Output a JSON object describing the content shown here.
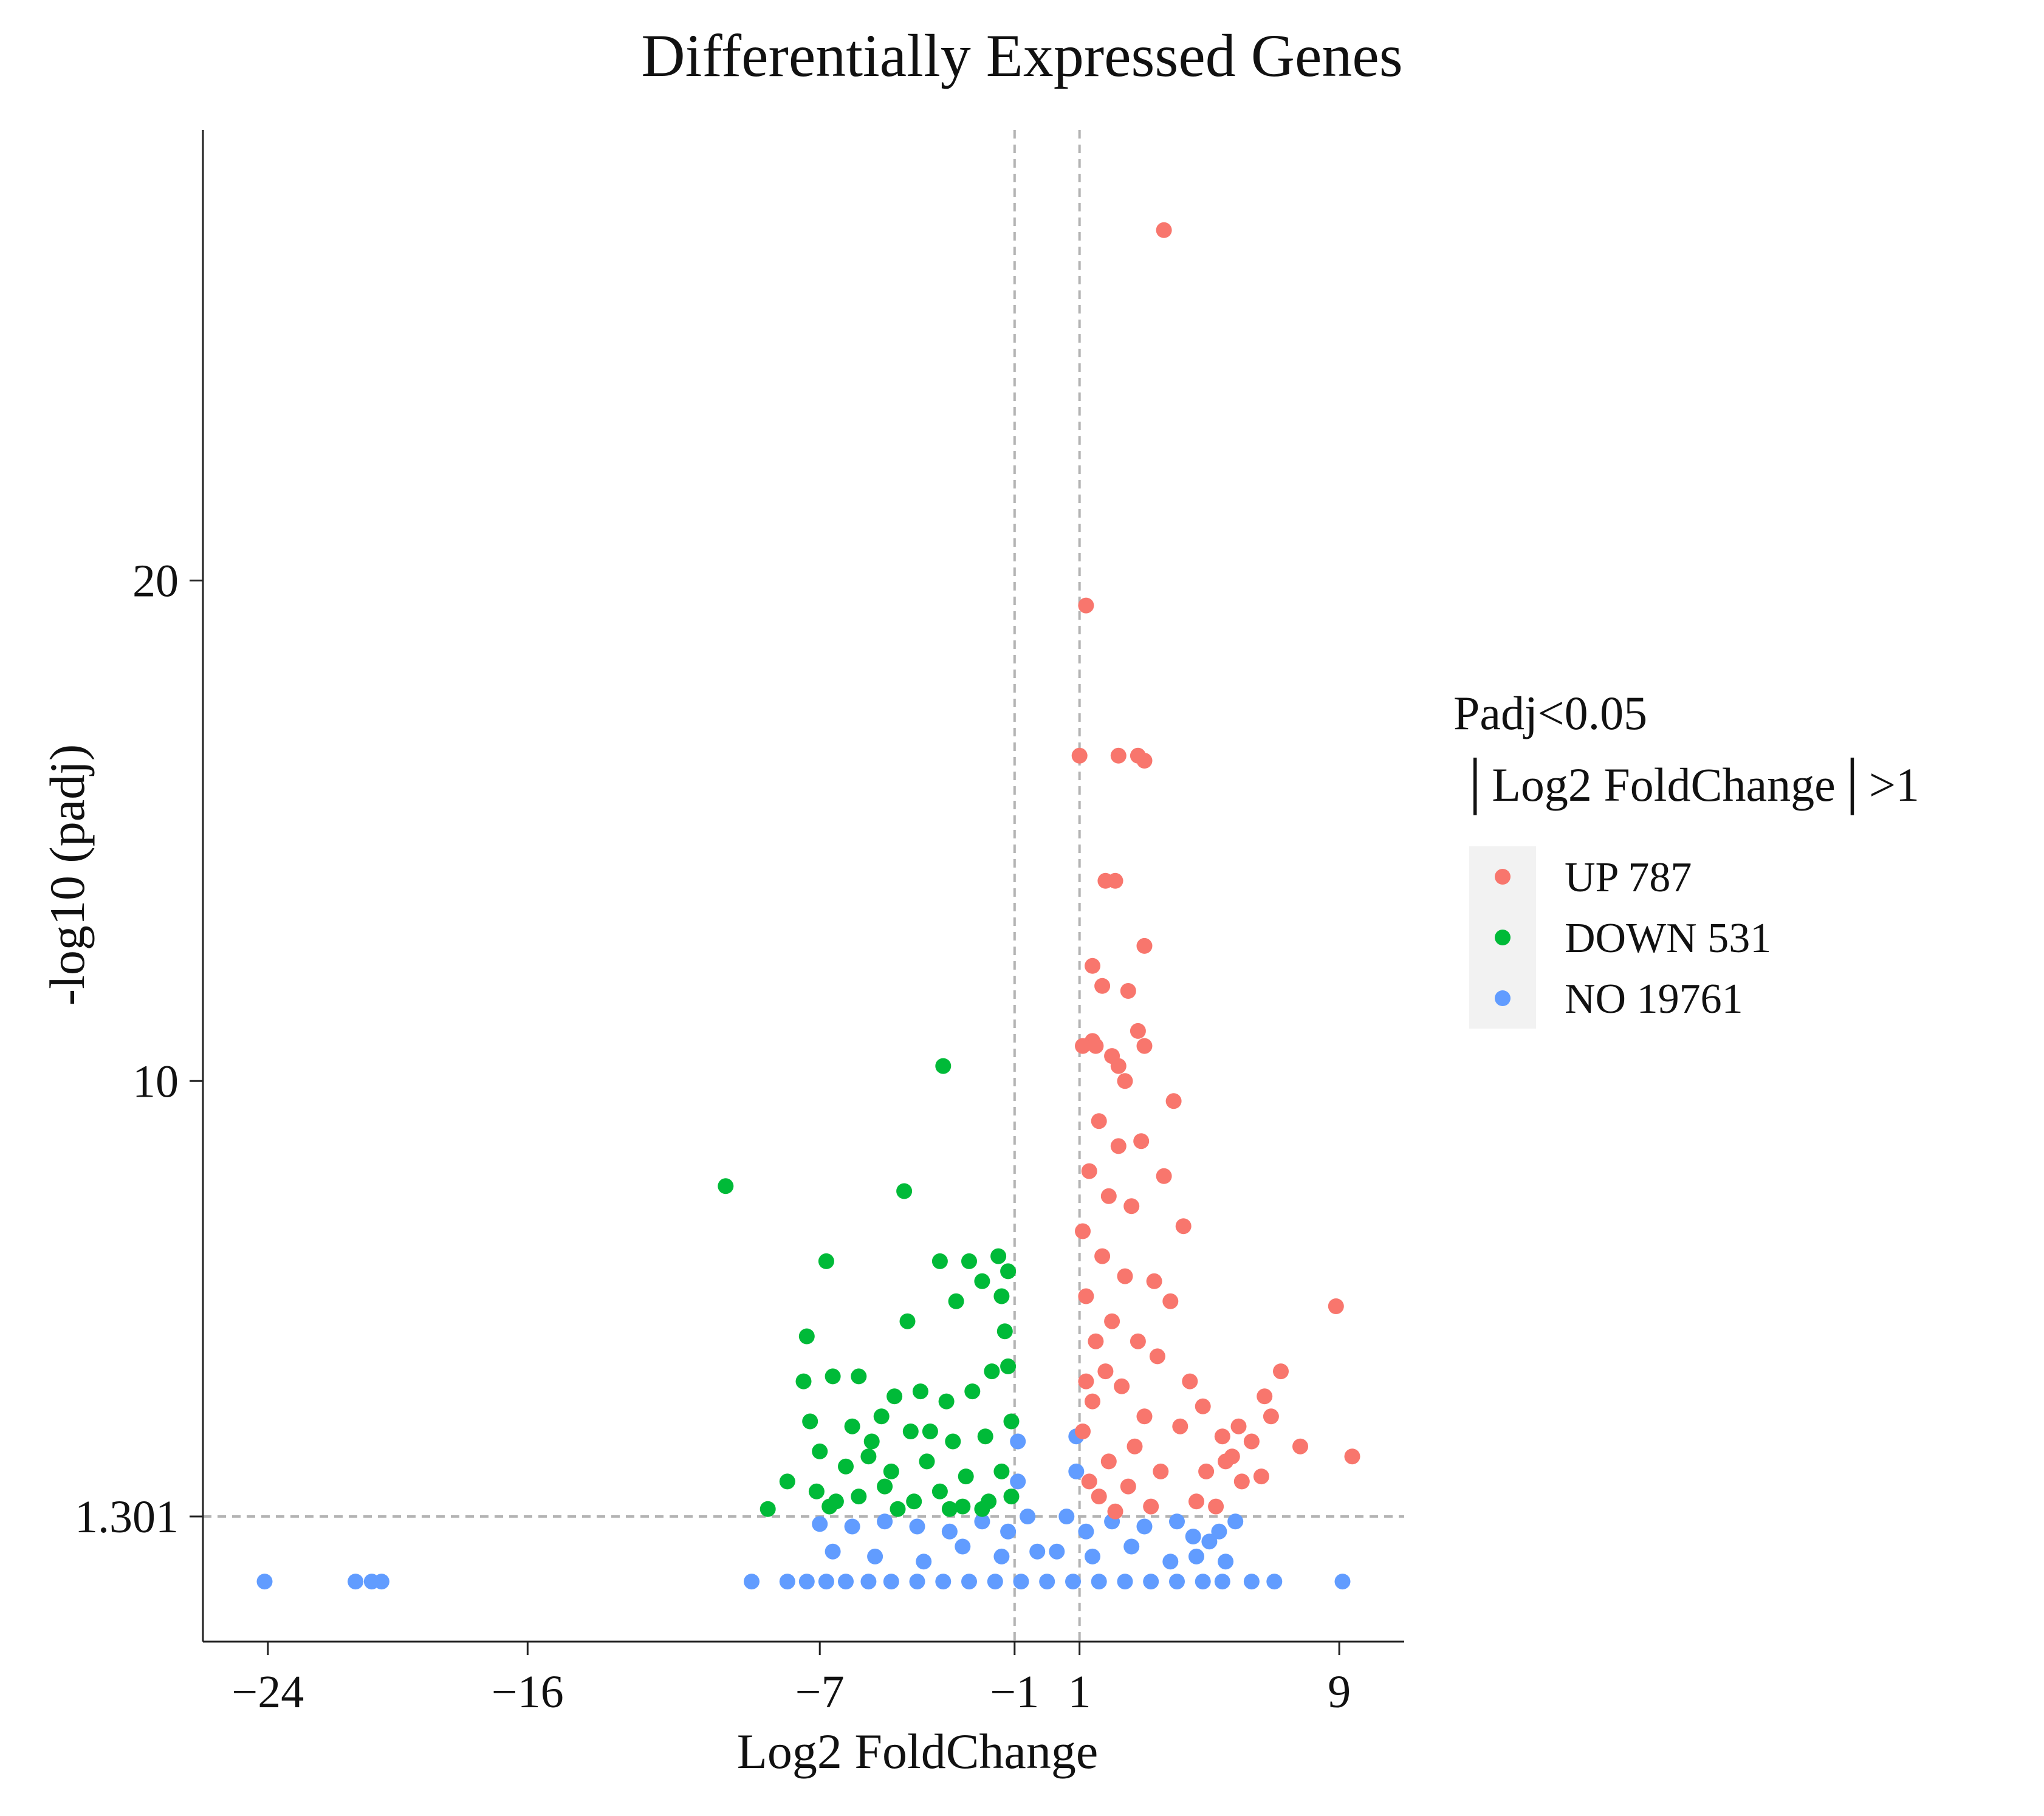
{
  "chart_data": {
    "type": "scatter",
    "title": "Differentially Expressed Genes",
    "xlabel": "Log2 FoldChange",
    "ylabel": "-log10 (padj)",
    "xlim": [
      -26,
      11
    ],
    "ylim": [
      -1.2,
      29
    ],
    "x_ticks": [
      -24,
      -16,
      -7,
      -1,
      1,
      9
    ],
    "x_tick_labels": [
      "−24",
      "−16",
      "−7",
      "−1",
      "1",
      "9"
    ],
    "y_ticks": [
      1.301,
      10,
      20
    ],
    "y_tick_labels": [
      "1.301",
      "10",
      "20"
    ],
    "thresholds": {
      "x": [
        -1,
        1
      ],
      "y": 1.301
    },
    "legend": {
      "title_line1": "Padj<0.05",
      "title_line2": "│Log2 FoldChange│>1",
      "position": "right",
      "entries": [
        {
          "group": "UP",
          "label": "UP   787"
        },
        {
          "group": "DOWN",
          "label": "DOWN  531"
        },
        {
          "group": "NO",
          "label": "NO  19761"
        }
      ]
    },
    "colors": {
      "UP": "#f8766d",
      "DOWN": "#00ba38",
      "NO": "#619cff"
    },
    "counts": {
      "UP": 787,
      "DOWN": 531,
      "NO": 19761
    },
    "series": [
      {
        "name": "UP",
        "points": [
          [
            3.6,
            27.0
          ],
          [
            1.2,
            19.5
          ],
          [
            1.0,
            16.5
          ],
          [
            2.2,
            16.5
          ],
          [
            2.8,
            16.5
          ],
          [
            3.0,
            16.4
          ],
          [
            1.8,
            14.0
          ],
          [
            2.1,
            14.0
          ],
          [
            3.0,
            12.7
          ],
          [
            1.4,
            12.3
          ],
          [
            1.7,
            11.9
          ],
          [
            2.5,
            11.8
          ],
          [
            1.4,
            10.8
          ],
          [
            1.1,
            10.7
          ],
          [
            1.5,
            10.7
          ],
          [
            2.0,
            10.5
          ],
          [
            2.2,
            10.3
          ],
          [
            2.8,
            11.0
          ],
          [
            3.0,
            10.7
          ],
          [
            2.4,
            10.0
          ],
          [
            3.9,
            9.6
          ],
          [
            1.6,
            9.2
          ],
          [
            2.2,
            8.7
          ],
          [
            2.9,
            8.8
          ],
          [
            1.3,
            8.2
          ],
          [
            1.9,
            7.7
          ],
          [
            3.6,
            8.1
          ],
          [
            2.6,
            7.5
          ],
          [
            4.2,
            7.1
          ],
          [
            1.1,
            7.0
          ],
          [
            1.7,
            6.5
          ],
          [
            2.4,
            6.1
          ],
          [
            3.3,
            6.0
          ],
          [
            2.0,
            5.2
          ],
          [
            1.2,
            5.7
          ],
          [
            1.5,
            4.8
          ],
          [
            2.8,
            4.8
          ],
          [
            3.4,
            4.5
          ],
          [
            1.8,
            4.2
          ],
          [
            2.3,
            3.9
          ],
          [
            1.4,
            3.6
          ],
          [
            3.0,
            3.3
          ],
          [
            4.1,
            3.1
          ],
          [
            2.7,
            2.7
          ],
          [
            1.9,
            2.4
          ],
          [
            3.5,
            2.2
          ],
          [
            1.3,
            2.0
          ],
          [
            2.5,
            1.9
          ],
          [
            1.6,
            1.7
          ],
          [
            4.6,
            1.6
          ],
          [
            5.2,
            1.5
          ],
          [
            6.0,
            2.0
          ],
          [
            8.9,
            5.5
          ],
          [
            7.2,
            4.2
          ],
          [
            6.7,
            3.7
          ],
          [
            5.9,
            3.1
          ],
          [
            9.4,
            2.5
          ],
          [
            7.8,
            2.7
          ],
          [
            6.6,
            2.1
          ],
          [
            5.4,
            2.9
          ],
          [
            4.4,
            4.0
          ],
          [
            3.8,
            5.6
          ],
          [
            4.8,
            3.5
          ],
          [
            5.7,
            2.5
          ],
          [
            6.3,
            2.8
          ],
          [
            6.9,
            3.3
          ],
          [
            4.9,
            2.2
          ],
          [
            5.5,
            2.4
          ],
          [
            3.2,
            1.5
          ],
          [
            2.1,
            1.4
          ],
          [
            1.1,
            3.0
          ],
          [
            1.2,
            4.0
          ]
        ]
      },
      {
        "name": "DOWN",
        "points": [
          [
            -3.2,
            10.3
          ],
          [
            -9.9,
            7.9
          ],
          [
            -4.4,
            7.8
          ],
          [
            -2.4,
            6.4
          ],
          [
            -3.3,
            6.4
          ],
          [
            -1.5,
            6.5
          ],
          [
            -6.8,
            6.4
          ],
          [
            -2.0,
            6.0
          ],
          [
            -1.4,
            5.7
          ],
          [
            -1.2,
            6.2
          ],
          [
            -4.3,
            5.2
          ],
          [
            -2.8,
            5.6
          ],
          [
            -7.4,
            4.9
          ],
          [
            -6.6,
            4.1
          ],
          [
            -5.8,
            4.1
          ],
          [
            -7.5,
            4.0
          ],
          [
            -3.9,
            3.8
          ],
          [
            -4.7,
            3.7
          ],
          [
            -7.3,
            3.2
          ],
          [
            -3.1,
            3.6
          ],
          [
            -2.3,
            3.8
          ],
          [
            -1.7,
            4.2
          ],
          [
            -1.2,
            4.3
          ],
          [
            -6.0,
            3.1
          ],
          [
            -5.1,
            3.3
          ],
          [
            -4.2,
            3.0
          ],
          [
            -2.9,
            2.8
          ],
          [
            -1.9,
            2.9
          ],
          [
            -1.1,
            3.2
          ],
          [
            -7.0,
            2.6
          ],
          [
            -6.2,
            2.3
          ],
          [
            -5.5,
            2.5
          ],
          [
            -4.8,
            2.2
          ],
          [
            -3.7,
            2.4
          ],
          [
            -2.5,
            2.1
          ],
          [
            -1.4,
            2.2
          ],
          [
            -8.0,
            2.0
          ],
          [
            -7.1,
            1.8
          ],
          [
            -6.5,
            1.6
          ],
          [
            -5.8,
            1.7
          ],
          [
            -5.0,
            1.9
          ],
          [
            -4.1,
            1.6
          ],
          [
            -3.3,
            1.8
          ],
          [
            -2.6,
            1.5
          ],
          [
            -1.8,
            1.6
          ],
          [
            -1.1,
            1.7
          ],
          [
            -8.6,
            1.45
          ],
          [
            -6.7,
            1.5
          ],
          [
            -4.6,
            1.45
          ],
          [
            -3.0,
            1.45
          ],
          [
            -2.0,
            1.45
          ],
          [
            -5.4,
            2.8
          ],
          [
            -1.3,
            5.0
          ],
          [
            -3.6,
            3.0
          ]
        ]
      },
      {
        "name": "NO",
        "points": [
          [
            -24.1,
            0.0
          ],
          [
            -21.3,
            0.0
          ],
          [
            -20.8,
            0.0
          ],
          [
            -20.5,
            0.0
          ],
          [
            -9.1,
            0.0
          ],
          [
            -8.0,
            0.0
          ],
          [
            -7.4,
            0.0
          ],
          [
            -6.8,
            0.0
          ],
          [
            -6.2,
            0.0
          ],
          [
            -5.5,
            0.0
          ],
          [
            -4.8,
            0.0
          ],
          [
            -4.0,
            0.0
          ],
          [
            -3.2,
            0.0
          ],
          [
            -2.4,
            0.0
          ],
          [
            -1.6,
            0.0
          ],
          [
            -0.8,
            0.0
          ],
          [
            0.0,
            0.0
          ],
          [
            0.8,
            0.0
          ],
          [
            1.6,
            0.0
          ],
          [
            2.4,
            0.0
          ],
          [
            3.2,
            0.0
          ],
          [
            4.0,
            0.0
          ],
          [
            4.8,
            0.0
          ],
          [
            5.4,
            0.0
          ],
          [
            6.3,
            0.0
          ],
          [
            7.0,
            0.0
          ],
          [
            9.1,
            0.0
          ],
          [
            -7.0,
            1.15
          ],
          [
            -6.0,
            1.1
          ],
          [
            -5.0,
            1.2
          ],
          [
            -4.0,
            1.1
          ],
          [
            -3.0,
            1.0
          ],
          [
            -2.0,
            1.2
          ],
          [
            -1.2,
            1.0
          ],
          [
            1.2,
            1.0
          ],
          [
            2.0,
            1.2
          ],
          [
            3.0,
            1.1
          ],
          [
            4.0,
            1.2
          ],
          [
            4.5,
            0.9
          ],
          [
            5.0,
            0.8
          ],
          [
            5.3,
            1.0
          ],
          [
            5.8,
            1.2
          ],
          [
            -6.6,
            0.6
          ],
          [
            -5.3,
            0.5
          ],
          [
            -3.8,
            0.4
          ],
          [
            -2.6,
            0.7
          ],
          [
            -1.4,
            0.5
          ],
          [
            -0.9,
            2.0
          ],
          [
            -0.6,
            1.3
          ],
          [
            -0.3,
            0.6
          ],
          [
            0.3,
            0.6
          ],
          [
            0.6,
            1.3
          ],
          [
            0.9,
            2.2
          ],
          [
            1.4,
            0.5
          ],
          [
            2.6,
            0.7
          ],
          [
            3.8,
            0.4
          ],
          [
            4.6,
            0.5
          ],
          [
            5.5,
            0.4
          ],
          [
            -0.9,
            2.8
          ],
          [
            0.9,
            2.9
          ]
        ]
      }
    ]
  }
}
